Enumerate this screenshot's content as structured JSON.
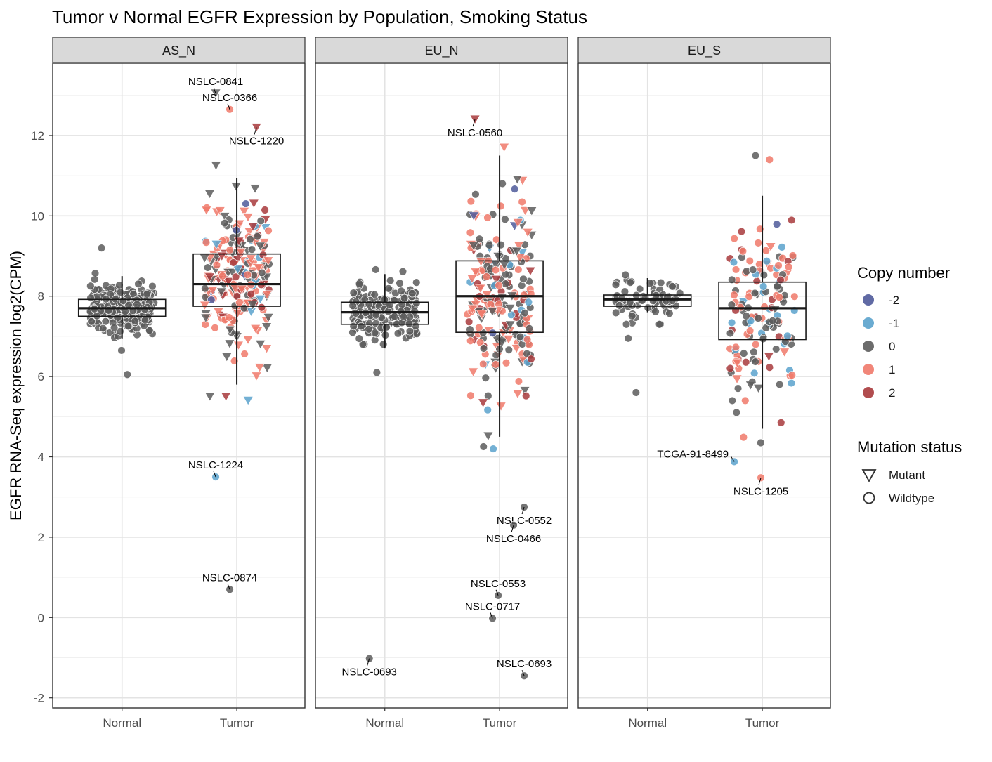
{
  "chart_data": {
    "type": "scatter",
    "title": "Tumor v Normal EGFR Expression by Population, Smoking Status",
    "ylabel": "EGFR RNA-Seq expression log2(CPM)",
    "xlabel": "",
    "ylim": [
      -2.25,
      13.8
    ],
    "yticks": [
      -2,
      0,
      2,
      4,
      6,
      8,
      10,
      12
    ],
    "categories": [
      "Normal",
      "Tumor"
    ],
    "grid": true,
    "panels": [
      {
        "name": "AS_N",
        "boxes": [
          {
            "category": "Normal",
            "min": 6.95,
            "q1": 7.5,
            "median": 7.7,
            "q3": 7.92,
            "max": 8.5
          },
          {
            "category": "Tumor",
            "min": 5.8,
            "q1": 7.75,
            "median": 8.3,
            "q3": 9.05,
            "max": 10.95
          }
        ],
        "labeled_points": [
          {
            "sample": "NSLC-0841",
            "category": "Tumor",
            "y": 13.05,
            "copy_number": 0,
            "mutation": "Mutant"
          },
          {
            "sample": "NSLC-0366",
            "category": "Tumor",
            "y": 12.65,
            "copy_number": 1,
            "mutation": "Wildtype"
          },
          {
            "sample": "NSLC-1220",
            "category": "Tumor",
            "y": 12.2,
            "copy_number": 2,
            "mutation": "Mutant"
          },
          {
            "sample": "NSLC-1224",
            "category": "Tumor",
            "y": 3.5,
            "copy_number": -1,
            "mutation": "Wildtype"
          },
          {
            "sample": "NSLC-0874",
            "category": "Tumor",
            "y": 0.7,
            "copy_number": 0,
            "mutation": "Wildtype"
          }
        ],
        "outliers": [
          {
            "category": "Normal",
            "y": 9.2,
            "copy_number": 0,
            "mutation": "Wildtype"
          },
          {
            "category": "Normal",
            "y": 6.05,
            "copy_number": 0,
            "mutation": "Wildtype"
          },
          {
            "category": "Tumor",
            "y": 5.4,
            "copy_number": -1,
            "mutation": "Mutant"
          }
        ]
      },
      {
        "name": "EU_N",
        "boxes": [
          {
            "category": "Normal",
            "min": 6.7,
            "q1": 7.3,
            "median": 7.6,
            "q3": 7.85,
            "max": 8.55
          },
          {
            "category": "Tumor",
            "min": 4.5,
            "q1": 7.1,
            "median": 8.0,
            "q3": 8.88,
            "max": 11.5
          }
        ],
        "labeled_points": [
          {
            "sample": "NSLC-0560",
            "category": "Tumor",
            "y": 12.4,
            "copy_number": 2,
            "mutation": "Mutant"
          },
          {
            "sample": "NSLC-0693",
            "category": "Normal",
            "y": -1.02,
            "copy_number": 0,
            "mutation": "Wildtype"
          },
          {
            "sample": "NSLC-0552",
            "category": "Tumor",
            "y": 2.75,
            "copy_number": 0,
            "mutation": "Wildtype"
          },
          {
            "sample": "NSLC-0466",
            "category": "Tumor",
            "y": 2.3,
            "copy_number": 0,
            "mutation": "Wildtype"
          },
          {
            "sample": "NSLC-0553",
            "category": "Tumor",
            "y": 0.55,
            "copy_number": 0,
            "mutation": "Wildtype"
          },
          {
            "sample": "NSLC-0717",
            "category": "Tumor",
            "y": -0.02,
            "copy_number": 0,
            "mutation": "Wildtype"
          },
          {
            "sample": "NSLC-0693",
            "category": "Tumor",
            "y": -1.45,
            "copy_number": 0,
            "mutation": "Wildtype"
          }
        ],
        "outliers": [
          {
            "category": "Normal",
            "y": 6.1,
            "copy_number": 0,
            "mutation": "Wildtype"
          },
          {
            "category": "Tumor",
            "y": 11.7,
            "copy_number": 1,
            "mutation": "Mutant"
          },
          {
            "category": "Tumor",
            "y": 4.2,
            "copy_number": -1,
            "mutation": "Wildtype"
          }
        ]
      },
      {
        "name": "EU_S",
        "boxes": [
          {
            "category": "Normal",
            "min": 7.6,
            "q1": 7.75,
            "median": 7.92,
            "q3": 8.03,
            "max": 8.45
          },
          {
            "category": "Tumor",
            "min": 4.7,
            "q1": 6.92,
            "median": 7.7,
            "q3": 8.35,
            "max": 10.5
          }
        ],
        "labeled_points": [
          {
            "sample": "TCGA-91-8499",
            "category": "Tumor",
            "y": 3.88,
            "copy_number": -1,
            "mutation": "Wildtype"
          },
          {
            "sample": "NSLC-1205",
            "category": "Tumor",
            "y": 3.48,
            "copy_number": 1,
            "mutation": "Wildtype"
          }
        ],
        "outliers": [
          {
            "category": "Normal",
            "y": 5.6,
            "copy_number": 0,
            "mutation": "Wildtype"
          },
          {
            "category": "Normal",
            "y": 6.95,
            "copy_number": 0,
            "mutation": "Wildtype"
          },
          {
            "category": "Tumor",
            "y": 11.5,
            "copy_number": 0,
            "mutation": "Wildtype"
          },
          {
            "category": "Tumor",
            "y": 11.4,
            "copy_number": 1,
            "mutation": "Wildtype"
          },
          {
            "category": "Tumor",
            "y": 4.35,
            "copy_number": 0,
            "mutation": "Wildtype"
          },
          {
            "category": "Tumor",
            "y": 4.85,
            "copy_number": 2,
            "mutation": "Wildtype"
          }
        ]
      }
    ],
    "legend": {
      "placement": "right",
      "copy_number": {
        "title": "Copy number",
        "levels": [
          {
            "label": "-2",
            "color": "#4f5a9a"
          },
          {
            "label": "-1",
            "color": "#5aa2cc"
          },
          {
            "label": "0",
            "color": "#5c5c5c"
          },
          {
            "label": "1",
            "color": "#f0796a"
          },
          {
            "label": "2",
            "color": "#a83a3c"
          }
        ]
      },
      "mutation_status": {
        "title": "Mutation status",
        "levels": [
          {
            "label": "Mutant",
            "shape": "triangle-down"
          },
          {
            "label": "Wildtype",
            "shape": "circle"
          }
        ]
      }
    }
  }
}
